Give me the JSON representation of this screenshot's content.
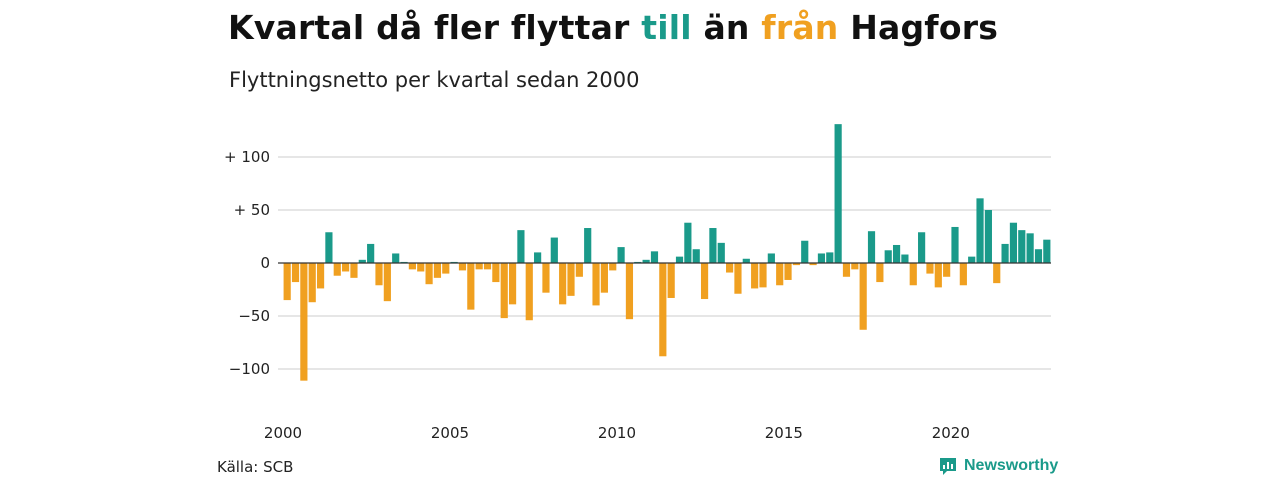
{
  "title": {
    "part1": "Kvartal då fler flyttar ",
    "part2": "till",
    "part3": " än ",
    "part4": "från",
    "part5": " Hagfors"
  },
  "subtitle": "Flyttningsnetto per kvartal sedan 2000",
  "source": "Källa: SCB",
  "brand": {
    "name": "Newsworthy",
    "icon": "newsworthy-logo-icon"
  },
  "colors": {
    "positive": "#1a9a8a",
    "negative": "#f0a020",
    "grid": "#dddddd",
    "text": "#222222"
  },
  "chart_data": {
    "type": "bar",
    "title": "Kvartal då fler flyttar till än från Hagfors",
    "subtitle": "Flyttningsnetto per kvartal sedan 2000",
    "start_year": 2000,
    "periods_per_year": 4,
    "ylim": [
      -115,
      135
    ],
    "yticks": [
      {
        "value": 100,
        "label": "+ 100"
      },
      {
        "value": 50,
        "label": "+  50"
      },
      {
        "value": 0,
        "label": "0"
      },
      {
        "value": -50,
        "label": "−50"
      },
      {
        "value": -100,
        "label": "−100"
      }
    ],
    "xticks": [
      {
        "value": 2000,
        "label": "2000"
      },
      {
        "value": 2005,
        "label": "2005"
      },
      {
        "value": 2010,
        "label": "2010"
      },
      {
        "value": 2015,
        "label": "2015"
      },
      {
        "value": 2020,
        "label": "2020"
      }
    ],
    "grid": true,
    "series": [
      {
        "values": [
          -35,
          -18,
          -111,
          -37,
          -24,
          29,
          -12,
          -8,
          -14,
          3,
          18,
          -21,
          -36,
          9,
          1,
          -6,
          -8,
          -20,
          -14,
          -10,
          1,
          -7,
          -44,
          -6,
          -6,
          -18,
          -52,
          -39,
          31,
          -54,
          10,
          -28,
          24,
          -39,
          -31,
          -13,
          33,
          -40,
          -28,
          -7,
          15,
          -53,
          1,
          3,
          11,
          -88,
          -33,
          6,
          38,
          13,
          -34,
          33,
          19,
          -9,
          -29,
          4,
          -24,
          -23,
          9,
          -21,
          -16,
          -2,
          21,
          -2,
          9,
          10,
          131,
          -13,
          -6,
          -63,
          30,
          -18,
          12,
          17,
          8,
          -21,
          29,
          -10,
          -23,
          -13,
          34,
          -21,
          6,
          61,
          50,
          -19,
          18,
          38,
          31,
          28,
          13,
          22
        ]
      }
    ]
  }
}
